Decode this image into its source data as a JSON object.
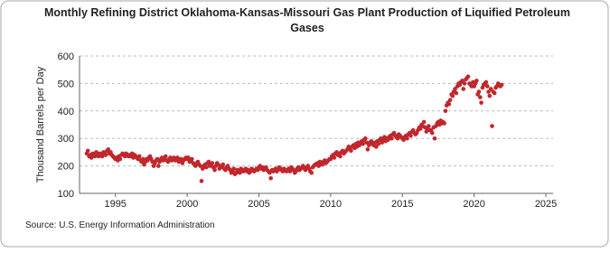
{
  "chart_data": {
    "type": "scatter",
    "title": "Monthly Refining District Oklahoma-Kansas-Missouri Gas Plant Production of Liquified Petroleum Gases",
    "y_label": "Thousand Barrels per Day",
    "source": "Source: U.S. Energy Information Administration",
    "grid": true,
    "xlim": [
      1992.5,
      2025.5
    ],
    "xticks": [
      1995,
      2000,
      2005,
      2010,
      2015,
      2020,
      2025
    ],
    "ylim": [
      100,
      600
    ],
    "yticks": [
      100,
      200,
      300,
      400,
      500,
      600
    ],
    "series": [
      {
        "color": "#c1272d",
        "x": [
          1993,
          1993.08,
          1993.17,
          1993.25,
          1993.33,
          1993.42,
          1993.5,
          1993.58,
          1993.67,
          1993.75,
          1993.83,
          1993.92,
          1994,
          1994.08,
          1994.17,
          1994.25,
          1994.33,
          1994.42,
          1994.5,
          1994.58,
          1994.67,
          1994.75,
          1994.83,
          1994.92,
          1995,
          1995.08,
          1995.17,
          1995.25,
          1995.33,
          1995.42,
          1995.5,
          1995.58,
          1995.67,
          1995.75,
          1995.83,
          1995.92,
          1996,
          1996.08,
          1996.17,
          1996.25,
          1996.33,
          1996.42,
          1996.5,
          1996.58,
          1996.67,
          1996.75,
          1996.83,
          1996.92,
          1997,
          1997.08,
          1997.17,
          1997.25,
          1997.33,
          1997.42,
          1997.5,
          1997.58,
          1997.67,
          1997.75,
          1997.83,
          1997.92,
          1998,
          1998.08,
          1998.17,
          1998.25,
          1998.33,
          1998.42,
          1998.5,
          1998.58,
          1998.67,
          1998.75,
          1998.83,
          1998.92,
          1999,
          1999.08,
          1999.17,
          1999.25,
          1999.33,
          1999.42,
          1999.5,
          1999.58,
          1999.67,
          1999.75,
          1999.83,
          1999.92,
          2000,
          2000.08,
          2000.17,
          2000.25,
          2000.33,
          2000.42,
          2000.5,
          2000.58,
          2000.67,
          2000.75,
          2000.83,
          2000.92,
          2001,
          2001.08,
          2001.17,
          2001.25,
          2001.33,
          2001.42,
          2001.5,
          2001.58,
          2001.67,
          2001.75,
          2001.83,
          2001.92,
          2002,
          2002.08,
          2002.17,
          2002.25,
          2002.33,
          2002.42,
          2002.5,
          2002.58,
          2002.67,
          2002.75,
          2002.83,
          2002.92,
          2003,
          2003.08,
          2003.17,
          2003.25,
          2003.33,
          2003.42,
          2003.5,
          2003.58,
          2003.67,
          2003.75,
          2003.83,
          2003.92,
          2004,
          2004.08,
          2004.17,
          2004.25,
          2004.33,
          2004.42,
          2004.5,
          2004.58,
          2004.67,
          2004.75,
          2004.83,
          2004.92,
          2005,
          2005.08,
          2005.17,
          2005.25,
          2005.33,
          2005.42,
          2005.5,
          2005.58,
          2005.67,
          2005.75,
          2005.83,
          2005.92,
          2006,
          2006.08,
          2006.17,
          2006.25,
          2006.33,
          2006.42,
          2006.5,
          2006.58,
          2006.67,
          2006.75,
          2006.83,
          2006.92,
          2007,
          2007.08,
          2007.17,
          2007.25,
          2007.33,
          2007.42,
          2007.5,
          2007.58,
          2007.67,
          2007.75,
          2007.83,
          2007.92,
          2008,
          2008.08,
          2008.17,
          2008.25,
          2008.33,
          2008.42,
          2008.5,
          2008.58,
          2008.67,
          2008.75,
          2008.83,
          2008.92,
          2009,
          2009.08,
          2009.17,
          2009.25,
          2009.33,
          2009.42,
          2009.5,
          2009.58,
          2009.67,
          2009.75,
          2009.83,
          2009.92,
          2010,
          2010.08,
          2010.17,
          2010.25,
          2010.33,
          2010.42,
          2010.5,
          2010.58,
          2010.67,
          2010.75,
          2010.83,
          2010.92,
          2011,
          2011.08,
          2011.17,
          2011.25,
          2011.33,
          2011.42,
          2011.5,
          2011.58,
          2011.67,
          2011.75,
          2011.83,
          2011.92,
          2012,
          2012.08,
          2012.17,
          2012.25,
          2012.33,
          2012.42,
          2012.5,
          2012.58,
          2012.67,
          2012.75,
          2012.83,
          2012.92,
          2013,
          2013.08,
          2013.17,
          2013.25,
          2013.33,
          2013.42,
          2013.5,
          2013.58,
          2013.67,
          2013.75,
          2013.83,
          2013.92,
          2014,
          2014.08,
          2014.17,
          2014.25,
          2014.33,
          2014.42,
          2014.5,
          2014.58,
          2014.67,
          2014.75,
          2014.83,
          2014.92,
          2015,
          2015.08,
          2015.17,
          2015.25,
          2015.33,
          2015.42,
          2015.5,
          2015.58,
          2015.67,
          2015.75,
          2015.83,
          2015.92,
          2016,
          2016.08,
          2016.17,
          2016.25,
          2016.33,
          2016.42,
          2016.5,
          2016.58,
          2016.67,
          2016.75,
          2016.83,
          2016.92,
          2017,
          2017.08,
          2017.17,
          2017.25,
          2017.33,
          2017.42,
          2017.5,
          2017.58,
          2017.67,
          2017.75,
          2017.83,
          2017.92,
          2018,
          2018.08,
          2018.17,
          2018.25,
          2018.33,
          2018.42,
          2018.5,
          2018.58,
          2018.67,
          2018.75,
          2018.83,
          2018.92,
          2019,
          2019.08,
          2019.17,
          2019.25,
          2019.33,
          2019.42,
          2019.5,
          2019.58,
          2019.67,
          2019.75,
          2019.83,
          2019.92,
          2020,
          2020.08,
          2020.17,
          2020.25,
          2020.33,
          2020.42,
          2020.5,
          2020.58,
          2020.67,
          2020.75,
          2020.83,
          2020.92,
          2021,
          2021.08,
          2021.17,
          2021.25,
          2021.33,
          2021.42,
          2021.5,
          2021.58,
          2021.67,
          2021.75,
          2021.83,
          2021.92
        ],
        "values": [
          245,
          255,
          235,
          240,
          230,
          245,
          240,
          235,
          250,
          240,
          235,
          245,
          240,
          235,
          250,
          245,
          240,
          255,
          260,
          245,
          250,
          240,
          235,
          230,
          225,
          230,
          220,
          235,
          225,
          240,
          245,
          240,
          235,
          245,
          240,
          235,
          240,
          235,
          245,
          230,
          240,
          235,
          230,
          225,
          235,
          220,
          215,
          225,
          205,
          215,
          225,
          220,
          230,
          235,
          225,
          215,
          200,
          210,
          220,
          225,
          200,
          215,
          225,
          230,
          220,
          225,
          235,
          220,
          215,
          225,
          230,
          220,
          225,
          230,
          220,
          225,
          230,
          215,
          220,
          225,
          210,
          220,
          225,
          230,
          225,
          230,
          215,
          220,
          225,
          210,
          205,
          200,
          210,
          215,
          205,
          200,
          145,
          190,
          200,
          205,
          195,
          210,
          215,
          200,
          205,
          210,
          195,
          185,
          200,
          210,
          205,
          190,
          195,
          200,
          205,
          190,
          185,
          195,
          200,
          190,
          185,
          175,
          180,
          190,
          170,
          175,
          185,
          180,
          175,
          190,
          185,
          180,
          185,
          190,
          180,
          185,
          175,
          180,
          190,
          185,
          180,
          185,
          190,
          185,
          195,
          200,
          190,
          195,
          185,
          190,
          195,
          185,
          180,
          175,
          155,
          185,
          180,
          185,
          190,
          180,
          185,
          195,
          190,
          185,
          180,
          190,
          185,
          180,
          185,
          190,
          180,
          195,
          190,
          185,
          175,
          180,
          190,
          195,
          185,
          190,
          195,
          200,
          190,
          185,
          195,
          200,
          190,
          180,
          175,
          195,
          200,
          205,
          205,
          210,
          200,
          215,
          210,
          205,
          215,
          220,
          210,
          215,
          220,
          225,
          225,
          235,
          240,
          230,
          245,
          250,
          240,
          245,
          235,
          250,
          255,
          245,
          250,
          255,
          260,
          270,
          265,
          255,
          270,
          275,
          265,
          280,
          270,
          285,
          275,
          285,
          290,
          280,
          295,
          300,
          285,
          260,
          275,
          285,
          290,
          280,
          275,
          285,
          270,
          290,
          280,
          295,
          300,
          285,
          295,
          305,
          290,
          300,
          295,
          305,
          310,
          300,
          315,
          320,
          310,
          305,
          300,
          315,
          310,
          305,
          300,
          295,
          305,
          310,
          300,
          315,
          320,
          310,
          325,
          330,
          320,
          315,
          320,
          330,
          340,
          335,
          350,
          345,
          360,
          340,
          325,
          335,
          345,
          330,
          330,
          320,
          340,
          300,
          345,
          355,
          360,
          350,
          365,
          355,
          360,
          355,
          400,
          420,
          430,
          425,
          440,
          460,
          455,
          470,
          480,
          465,
          490,
          500,
          495,
          505,
          510,
          480,
          500,
          515,
          520,
          525,
          500,
          495,
          490,
          505,
          490,
          500,
          510,
          460,
          470,
          450,
          430,
          485,
          495,
          500,
          505,
          490,
          470,
          455,
          480,
          345,
          470,
          465,
          485,
          490,
          500,
          495,
          490,
          495
        ]
      }
    ]
  }
}
